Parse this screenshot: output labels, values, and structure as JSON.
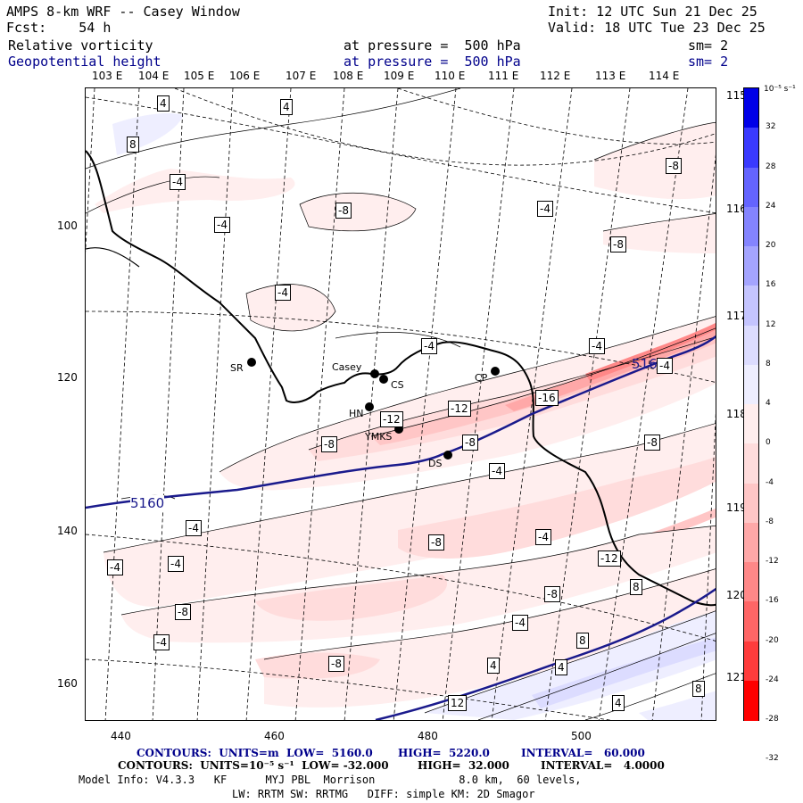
{
  "header": {
    "title": "AMPS 8-km WRF -- Casey Window",
    "fcst": "Fcst:    54 h",
    "init": "Init: 12 UTC Sun 21 Dec 25",
    "valid": "Valid: 18 UTC Tue 23 Dec 25",
    "field1": "Relative vorticity",
    "field1_level": "at pressure =  500 hPa",
    "field1_sm": "sm= 2",
    "field2": "Geopotential height",
    "field2_level": "at pressure =  500 hPa",
    "field2_sm": "sm= 2"
  },
  "colors": {
    "negative": [
      "#ffeeee",
      "#ffdcdc",
      "#ffc6c6",
      "#ffa8a8",
      "#ff8888",
      "#ff6666",
      "#ff3c3c",
      "#ff0000"
    ],
    "positive": [
      "#eeeeff",
      "#dcdcff",
      "#c4c4ff",
      "#a4a4ff",
      "#8484ff",
      "#6464ff",
      "#3a3aff",
      "#0000e8"
    ],
    "height_contour": "#1a1a8c"
  },
  "top_longitudes": [
    "103 E",
    "104 E",
    "105 E",
    "106 E",
    "107 E",
    "108 E",
    "109 E",
    "110 E",
    "111 E",
    "112 E",
    "113 E",
    "114 E"
  ],
  "right_longitudes": [
    "115 E",
    "116 E",
    "117 E",
    "118 E",
    "119 E",
    "120 E",
    "121 E"
  ],
  "x_ticks": [
    "440",
    "460",
    "480",
    "500"
  ],
  "y_ticks": [
    "100",
    "120",
    "140",
    "160"
  ],
  "colorbar": {
    "unit": "10⁻⁵ s⁻¹",
    "labels": [
      "32",
      "28",
      "24",
      "20",
      "16",
      "12",
      "8",
      "4",
      "0",
      "-4",
      "-8",
      "-12",
      "-16",
      "-20",
      "-24",
      "-28",
      "-32"
    ]
  },
  "stations": [
    {
      "code": "SR"
    },
    {
      "code": "Casey"
    },
    {
      "code": "CS"
    },
    {
      "code": "CP"
    },
    {
      "code": "HN"
    },
    {
      "code": "YMKS"
    },
    {
      "code": "DS"
    }
  ],
  "contour_labels": {
    "vort_neg4": "-4",
    "vort_neg8": "-8",
    "vort_neg12": "-12",
    "vort_neg16": "-16",
    "vort_pos4": "4",
    "vort_pos8": "8",
    "vort_pos12": "12",
    "height_5160": "5160"
  },
  "footer": {
    "line1_a": "CONTOURS:  UNITS=m  LOW=  5160.0",
    "line1_b": "HIGH=  5220.0",
    "line1_c": "INTERVAL=   60.000",
    "line2_a": "CONTOURS:  UNITS=10⁻⁵ s⁻¹  LOW= -32.000",
    "line2_b": "HIGH=  32.000",
    "line2_c": "INTERVAL=   4.0000",
    "line3": "Model Info: V4.3.3   KF      MYJ PBL  Morrison             8.0 km,  60 levels,",
    "line4": "LW: RRTM SW: RRTMG   DIFF: simple KM: 2D Smagor"
  }
}
